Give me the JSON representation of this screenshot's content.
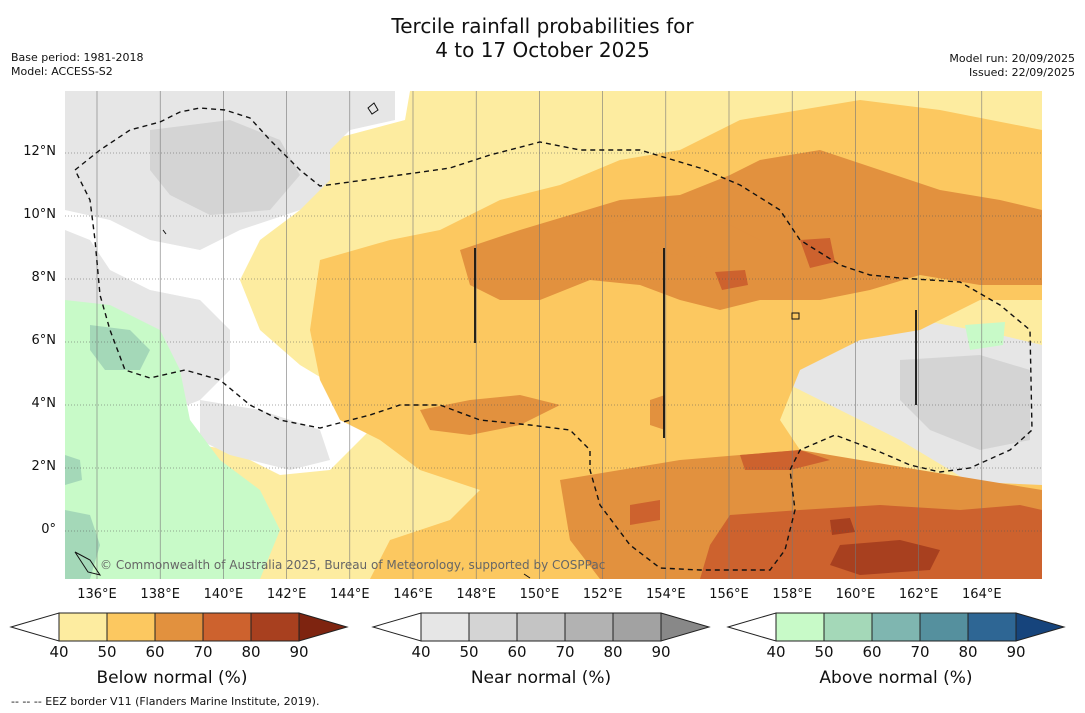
{
  "title": {
    "line1": "Tercile rainfall probabilities for",
    "line2": "4 to 17 October 2025"
  },
  "meta": {
    "base_period": "Base period: 1981-2018",
    "model": "Model: ACCESS-S2",
    "model_run": "Model run: 20/09/2025",
    "issued": "Issued: 22/09/2025"
  },
  "map": {
    "lat_labels": [
      "12°N",
      "10°N",
      "8°N",
      "6°N",
      "4°N",
      "2°N",
      "0°"
    ],
    "lon_labels": [
      "136°E",
      "138°E",
      "140°E",
      "142°E",
      "144°E",
      "146°E",
      "148°E",
      "150°E",
      "152°E",
      "154°E",
      "156°E",
      "158°E",
      "160°E",
      "162°E",
      "164°E"
    ],
    "copyright": "© Commonwealth of Australia 2025, Bureau of Meteorology, supported by COSPPac"
  },
  "colorbars": [
    {
      "title": "Below normal (%)",
      "ticks": [
        "40",
        "50",
        "60",
        "70",
        "80",
        "90"
      ],
      "colors": [
        "#fdeca0",
        "#fcc860",
        "#e2913e",
        "#cd622e",
        "#a8401f",
        "#7e2410"
      ]
    },
    {
      "title": "Near normal (%)",
      "ticks": [
        "40",
        "50",
        "60",
        "70",
        "80",
        "90"
      ],
      "colors": [
        "#e6e6e6",
        "#d4d4d4",
        "#c4c4c4",
        "#b2b2b2",
        "#a2a2a2",
        "#888888"
      ]
    },
    {
      "title": "Above normal (%)",
      "ticks": [
        "40",
        "50",
        "60",
        "70",
        "80",
        "90"
      ],
      "colors": [
        "#c8fac8",
        "#a4d8b8",
        "#7fb6b0",
        "#55909e",
        "#2e6694",
        "#16447c"
      ]
    }
  ],
  "footnote": "--  --  -- EEZ border V11 (Flanders Marine Institute, 2019)."
}
